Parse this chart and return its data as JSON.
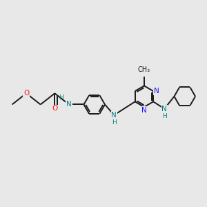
{
  "background_color": "#e8e8e8",
  "bond_color": "#1a1a1a",
  "nitrogen_color": "#1414ff",
  "oxygen_color": "#ff1414",
  "nh_color": "#008080",
  "carbon_color": "#1a1a1a",
  "figsize": [
    3.0,
    3.0
  ],
  "dpi": 100,
  "xlim": [
    0,
    10
  ],
  "ylim": [
    0,
    10
  ]
}
